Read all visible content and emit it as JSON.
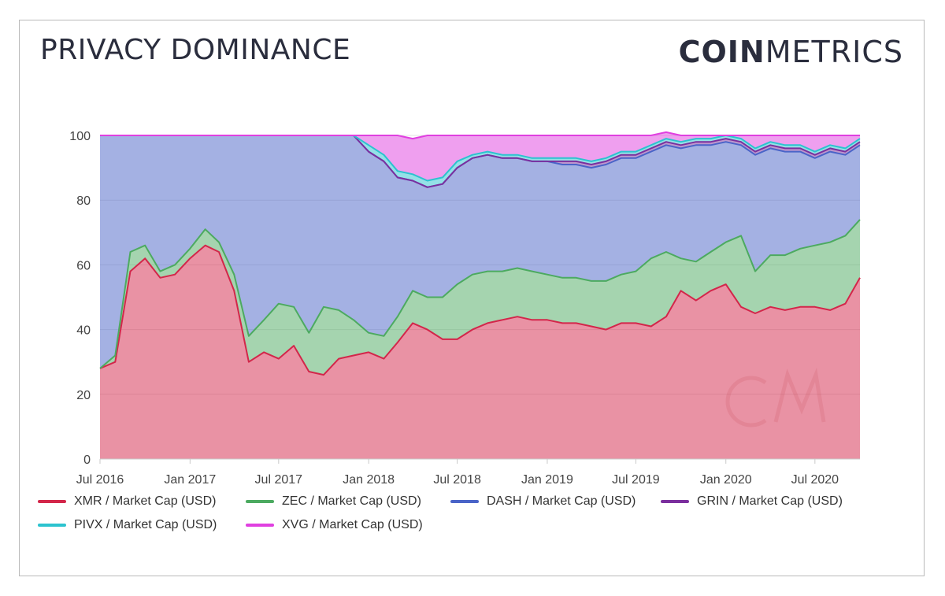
{
  "header": {
    "title": "PRIVACY DOMINANCE",
    "brand_bold": "COIN",
    "brand_light": "METRICS"
  },
  "colors": {
    "XMR": "#d3264a",
    "ZEC": "#4caa60",
    "DASH": "#4a64c8",
    "GRIN": "#7b2f9e",
    "PIVX": "#2cc3cf",
    "XVG": "#e040e0"
  },
  "legend": [
    {
      "label": "XMR / Market Cap (USD)",
      "key": "XMR"
    },
    {
      "label": "ZEC / Market Cap (USD)",
      "key": "ZEC"
    },
    {
      "label": "DASH / Market Cap (USD)",
      "key": "DASH"
    },
    {
      "label": "GRIN / Market Cap (USD)",
      "key": "GRIN"
    },
    {
      "label": "PIVX / Market Cap (USD)",
      "key": "PIVX"
    },
    {
      "label": "XVG / Market Cap (USD)",
      "key": "XVG"
    }
  ],
  "chart_data": {
    "type": "area",
    "stacked": true,
    "title": "PRIVACY DOMINANCE",
    "x": [
      "2016-07-01",
      "2016-08-01",
      "2016-09-01",
      "2016-10-01",
      "2016-11-01",
      "2016-12-01",
      "2017-01-01",
      "2017-02-01",
      "2017-03-01",
      "2017-04-01",
      "2017-05-01",
      "2017-06-01",
      "2017-07-01",
      "2017-08-01",
      "2017-09-01",
      "2017-10-01",
      "2017-11-01",
      "2017-12-01",
      "2018-01-01",
      "2018-02-01",
      "2018-03-01",
      "2018-04-01",
      "2018-05-01",
      "2018-06-01",
      "2018-07-01",
      "2018-08-01",
      "2018-09-01",
      "2018-10-01",
      "2018-11-01",
      "2018-12-01",
      "2019-01-01",
      "2019-02-01",
      "2019-03-01",
      "2019-04-01",
      "2019-05-01",
      "2019-06-01",
      "2019-07-01",
      "2019-08-01",
      "2019-09-01",
      "2019-10-01",
      "2019-11-01",
      "2019-12-01",
      "2020-01-01",
      "2020-02-01",
      "2020-03-01",
      "2020-04-01",
      "2020-05-01",
      "2020-06-01",
      "2020-07-01",
      "2020-08-01",
      "2020-09-01",
      "2020-10-01"
    ],
    "series": [
      {
        "name": "XMR / Market Cap (USD)",
        "values": [
          28,
          30,
          58,
          62,
          56,
          57,
          62,
          66,
          64,
          52,
          30,
          33,
          31,
          35,
          27,
          26,
          31,
          32,
          33,
          31,
          36,
          42,
          40,
          37,
          37,
          40,
          42,
          43,
          44,
          43,
          43,
          42,
          42,
          41,
          40,
          42,
          42,
          41,
          44,
          52,
          49,
          52,
          54,
          47,
          45,
          47,
          46,
          47,
          47,
          46,
          48,
          56
        ]
      },
      {
        "name": "ZEC / Market Cap (USD)",
        "values": [
          0,
          2,
          6,
          4,
          2,
          3,
          3,
          5,
          3,
          5,
          8,
          10,
          17,
          12,
          12,
          21,
          15,
          11,
          6,
          7,
          8,
          10,
          10,
          13,
          17,
          17,
          16,
          15,
          15,
          15,
          14,
          14,
          14,
          14,
          15,
          15,
          16,
          21,
          20,
          10,
          12,
          12,
          13,
          22,
          13,
          16,
          17,
          18,
          19,
          21,
          21,
          18
        ]
      },
      {
        "name": "DASH / Market Cap (USD)",
        "values": [
          72,
          68,
          36,
          34,
          42,
          40,
          35,
          29,
          33,
          43,
          62,
          57,
          52,
          53,
          61,
          53,
          54,
          57,
          56,
          54,
          43,
          34,
          34,
          35,
          36,
          36,
          36,
          35,
          34,
          34,
          35,
          35,
          35,
          35,
          36,
          36,
          35,
          33,
          33,
          34,
          36,
          33,
          31,
          28,
          36,
          33,
          32,
          30,
          27,
          28,
          25,
          23
        ]
      },
      {
        "name": "GRIN / Market Cap (USD)",
        "values": [
          0,
          0,
          0,
          0,
          0,
          0,
          0,
          0,
          0,
          0,
          0,
          0,
          0,
          0,
          0,
          0,
          0,
          0,
          0,
          0,
          0,
          0,
          0,
          0,
          0,
          0,
          0,
          0,
          0,
          0,
          0,
          1,
          1,
          1,
          1,
          1,
          1,
          1,
          1,
          1,
          1,
          1,
          1,
          1,
          1,
          1,
          1,
          1,
          1,
          1,
          1,
          1
        ]
      },
      {
        "name": "PIVX / Market Cap (USD)",
        "values": [
          0,
          0,
          0,
          0,
          0,
          0,
          0,
          0,
          0,
          0,
          0,
          0,
          0,
          0,
          0,
          0,
          0,
          0,
          2,
          2,
          2,
          2,
          2,
          2,
          2,
          1,
          1,
          1,
          1,
          1,
          1,
          1,
          1,
          1,
          1,
          1,
          1,
          1,
          1,
          1,
          1,
          1,
          1,
          1,
          1,
          1,
          1,
          1,
          1,
          1,
          1,
          1
        ]
      },
      {
        "name": "XVG / Market Cap (USD)",
        "values": [
          0,
          0,
          0,
          0,
          0,
          0,
          0,
          0,
          0,
          0,
          0,
          0,
          0,
          0,
          0,
          0,
          0,
          0,
          3,
          6,
          11,
          11,
          14,
          13,
          8,
          6,
          5,
          6,
          6,
          7,
          7,
          7,
          7,
          8,
          7,
          5,
          5,
          3,
          2,
          2,
          1,
          1,
          0,
          1,
          4,
          2,
          3,
          3,
          5,
          3,
          4,
          1
        ]
      }
    ],
    "xticks": [
      "Jul 2016",
      "Jan 2017",
      "Jul 2017",
      "Jan 2018",
      "Jul 2018",
      "Jan 2019",
      "Jul 2019",
      "Jan 2020",
      "Jul 2020"
    ],
    "xtick_dates": [
      "2016-07-01",
      "2017-01-01",
      "2017-07-01",
      "2018-01-01",
      "2018-07-01",
      "2019-01-01",
      "2019-07-01",
      "2020-01-01",
      "2020-07-01"
    ],
    "yticks": [
      "0",
      "20",
      "40",
      "60",
      "80",
      "100"
    ],
    "ylim": [
      0,
      100
    ],
    "xlabel": "",
    "ylabel": "",
    "grid": true,
    "legend_position": "bottom"
  }
}
